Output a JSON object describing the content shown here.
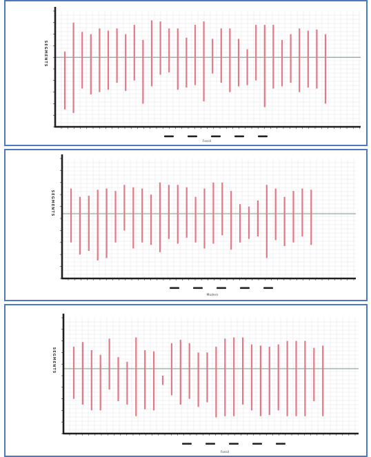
{
  "colors": {
    "bar": "#e07a86",
    "axis": "#1e1e1e",
    "grid": "#e4e4e8",
    "reference_line": "#5f8a6a",
    "panel_border": "#4a78c2"
  },
  "chart_data": [
    {
      "type": "bar",
      "ylabel": "SEGMENTS",
      "xlabel": "Fossil",
      "ylim": [
        0,
        10
      ],
      "reference_y": 6.0,
      "grid": true,
      "legend": "bottom-center",
      "series": [
        {
          "low": [
            1.5,
            1.2,
            3.3,
            2.8,
            3.0,
            3.2,
            3.8,
            3.1,
            4.0,
            2.0,
            3.5,
            4.5,
            4.7,
            3.2,
            3.4,
            3.6,
            2.2,
            4.6,
            3.8,
            3.0,
            3.5,
            3.6,
            4.0,
            1.7,
            3.3,
            3.5,
            3.8,
            3.0,
            3.4,
            3.3,
            2.0
          ],
          "high": [
            6.5,
            9.0,
            8.2,
            8.0,
            8.5,
            8.3,
            8.5,
            8.0,
            8.8,
            7.5,
            9.2,
            9.1,
            8.5,
            8.5,
            7.7,
            8.8,
            9.1,
            7.6,
            8.5,
            8.5,
            7.6,
            6.7,
            8.8,
            8.8,
            8.8,
            7.5,
            8.0,
            8.5,
            8.3,
            8.4,
            8.0
          ]
        }
      ]
    },
    {
      "type": "bar",
      "ylabel": "SEGMENTS",
      "xlabel": "Modern",
      "ylim": [
        0,
        10
      ],
      "reference_y": 5.4,
      "grid": true,
      "legend": "bottom-center",
      "series": [
        {
          "low": [
            3.0,
            2.0,
            2.3,
            1.5,
            1.7,
            3.0,
            4.0,
            2.5,
            3.0,
            2.8,
            2.2,
            3.3,
            2.9,
            3.4,
            3.0,
            2.5,
            2.9,
            3.6,
            2.4,
            3.0,
            3.3,
            3.5,
            1.7,
            3.2,
            2.7,
            3.0,
            3.5,
            2.8
          ],
          "high": [
            7.5,
            6.8,
            6.9,
            7.4,
            7.5,
            7.3,
            7.8,
            7.6,
            7.5,
            7.0,
            8.0,
            7.8,
            7.8,
            7.6,
            6.8,
            7.5,
            8.0,
            8.0,
            7.3,
            6.2,
            6.0,
            6.5,
            7.8,
            7.5,
            6.8,
            7.3,
            7.5,
            7.4
          ]
        }
      ]
    },
    {
      "type": "bar",
      "ylabel": "SEGMENTS",
      "xlabel": "Fossil",
      "ylim": [
        0,
        10
      ],
      "reference_y": 5.6,
      "grid": true,
      "legend": "bottom-center",
      "series": [
        {
          "low": [
            3.0,
            2.5,
            2.0,
            2.0,
            3.8,
            2.8,
            2.5,
            1.5,
            2.1,
            2.0,
            4.2,
            3.3,
            2.5,
            3.0,
            2.3,
            2.7,
            1.4,
            1.5,
            1.5,
            2.5,
            2.0,
            1.5,
            1.6,
            2.0,
            1.5,
            1.5,
            1.5,
            2.8,
            1.5
          ],
          "high": [
            7.5,
            7.9,
            7.2,
            6.8,
            8.2,
            6.6,
            6.2,
            8.3,
            7.2,
            7.1,
            5.0,
            7.8,
            8.1,
            7.8,
            7.0,
            7.0,
            7.5,
            8.2,
            8.3,
            8.3,
            7.7,
            7.6,
            7.5,
            7.7,
            8.0,
            8.0,
            8.0,
            7.4,
            7.6
          ]
        }
      ]
    }
  ]
}
